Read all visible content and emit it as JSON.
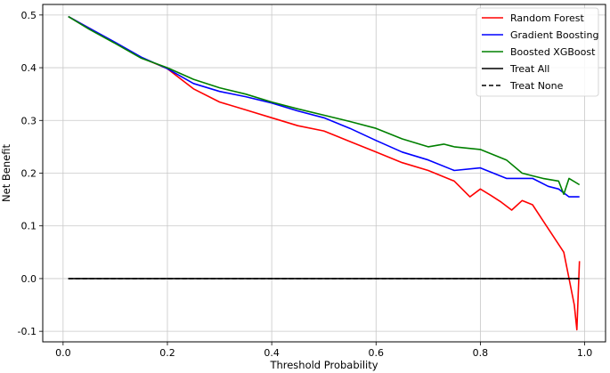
{
  "chart_data": {
    "type": "line",
    "title": "",
    "xlabel": "Threshold Probability",
    "ylabel": "Net Benefit",
    "xlim": [
      -0.039,
      1.04
    ],
    "ylim": [
      -0.12,
      0.52
    ],
    "xticks": [
      "0.0",
      "0.2",
      "0.4",
      "0.6",
      "0.8",
      "1.0"
    ],
    "xtick_values": [
      0.0,
      0.2,
      0.4,
      0.6,
      0.8,
      1.0
    ],
    "yticks": [
      "-0.1",
      "0.0",
      "0.1",
      "0.2",
      "0.3",
      "0.4",
      "0.5"
    ],
    "ytick_values": [
      -0.1,
      0.0,
      0.1,
      0.2,
      0.3,
      0.4,
      0.5
    ],
    "grid": true,
    "legend_position": "top-right",
    "series": [
      {
        "name": "Random Forest",
        "color": "#ff0000",
        "dash": "solid",
        "points": [
          [
            0.01,
            0.497
          ],
          [
            0.05,
            0.475
          ],
          [
            0.1,
            0.447
          ],
          [
            0.15,
            0.419
          ],
          [
            0.2,
            0.398
          ],
          [
            0.25,
            0.36
          ],
          [
            0.3,
            0.335
          ],
          [
            0.35,
            0.32
          ],
          [
            0.4,
            0.305
          ],
          [
            0.45,
            0.29
          ],
          [
            0.5,
            0.28
          ],
          [
            0.55,
            0.26
          ],
          [
            0.6,
            0.24
          ],
          [
            0.65,
            0.22
          ],
          [
            0.7,
            0.205
          ],
          [
            0.75,
            0.185
          ],
          [
            0.78,
            0.155
          ],
          [
            0.8,
            0.17
          ],
          [
            0.82,
            0.158
          ],
          [
            0.84,
            0.145
          ],
          [
            0.86,
            0.13
          ],
          [
            0.88,
            0.148
          ],
          [
            0.9,
            0.14
          ],
          [
            0.92,
            0.11
          ],
          [
            0.94,
            0.08
          ],
          [
            0.96,
            0.05
          ],
          [
            0.97,
            0.0
          ],
          [
            0.98,
            -0.05
          ],
          [
            0.985,
            -0.097
          ],
          [
            0.99,
            0.033
          ]
        ]
      },
      {
        "name": "Gradient Boosting",
        "color": "#0000ff",
        "dash": "solid",
        "points": [
          [
            0.01,
            0.497
          ],
          [
            0.05,
            0.475
          ],
          [
            0.1,
            0.448
          ],
          [
            0.15,
            0.42
          ],
          [
            0.2,
            0.398
          ],
          [
            0.25,
            0.37
          ],
          [
            0.3,
            0.355
          ],
          [
            0.35,
            0.345
          ],
          [
            0.4,
            0.333
          ],
          [
            0.45,
            0.318
          ],
          [
            0.5,
            0.305
          ],
          [
            0.55,
            0.285
          ],
          [
            0.6,
            0.262
          ],
          [
            0.65,
            0.24
          ],
          [
            0.7,
            0.225
          ],
          [
            0.75,
            0.205
          ],
          [
            0.8,
            0.21
          ],
          [
            0.85,
            0.19
          ],
          [
            0.9,
            0.19
          ],
          [
            0.93,
            0.175
          ],
          [
            0.95,
            0.17
          ],
          [
            0.97,
            0.155
          ],
          [
            0.99,
            0.155
          ]
        ]
      },
      {
        "name": "Boosted XGBoost",
        "color": "#008000",
        "dash": "solid",
        "points": [
          [
            0.01,
            0.497
          ],
          [
            0.05,
            0.473
          ],
          [
            0.1,
            0.446
          ],
          [
            0.15,
            0.418
          ],
          [
            0.2,
            0.4
          ],
          [
            0.25,
            0.378
          ],
          [
            0.3,
            0.362
          ],
          [
            0.35,
            0.35
          ],
          [
            0.4,
            0.335
          ],
          [
            0.45,
            0.322
          ],
          [
            0.5,
            0.31
          ],
          [
            0.55,
            0.298
          ],
          [
            0.6,
            0.285
          ],
          [
            0.65,
            0.265
          ],
          [
            0.7,
            0.25
          ],
          [
            0.73,
            0.255
          ],
          [
            0.75,
            0.25
          ],
          [
            0.8,
            0.245
          ],
          [
            0.85,
            0.225
          ],
          [
            0.88,
            0.2
          ],
          [
            0.9,
            0.195
          ],
          [
            0.92,
            0.19
          ],
          [
            0.95,
            0.185
          ],
          [
            0.96,
            0.16
          ],
          [
            0.97,
            0.19
          ],
          [
            0.99,
            0.178
          ]
        ]
      },
      {
        "name": "Treat All",
        "color": "#000000",
        "dash": "solid",
        "points": [
          [
            0.01,
            0.0
          ],
          [
            0.99,
            0.0
          ]
        ]
      },
      {
        "name": "Treat None",
        "color": "#000000",
        "dash": "dashed",
        "points": [
          [
            0.01,
            0.0
          ],
          [
            0.99,
            0.0
          ]
        ]
      }
    ]
  }
}
